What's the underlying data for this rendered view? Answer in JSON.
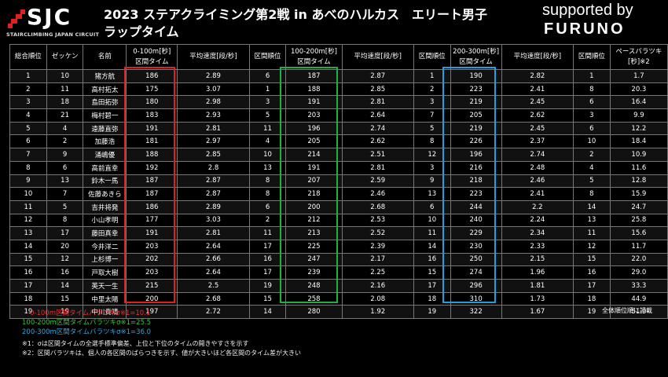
{
  "logo": {
    "text": "SJC",
    "sub": "STAIRCLIMBING JAPAN CIRCUIT"
  },
  "title": {
    "line1": "2023 ステアクライミング第2戦 in あべのハルカス　エリート男子",
    "line2": "ラップタイム"
  },
  "sponsor": {
    "supported": "supported by",
    "name": "FURUNO"
  },
  "headers": [
    "総合順位",
    "ゼッケン",
    "名前",
    "0-100m[秒]\n区間タイム",
    "平均速度[段/秒]",
    "区間順位",
    "100-200m[秒]\n区間タイム",
    "平均速度[段/秒]",
    "区間順位",
    "200-300m[秒]\n区間タイム",
    "平均速度[段/秒]",
    "区間順位",
    "ペースバラツキ\n[秒]※2"
  ],
  "rows": [
    [
      "1",
      "10",
      "猪方航",
      "186",
      "2.89",
      "6",
      "187",
      "2.87",
      "1",
      "190",
      "2.82",
      "1",
      "1.7"
    ],
    [
      "2",
      "11",
      "高村拓太",
      "175",
      "3.07",
      "1",
      "188",
      "2.85",
      "2",
      "223",
      "2.41",
      "8",
      "20.3"
    ],
    [
      "3",
      "18",
      "島田拓弥",
      "180",
      "2.98",
      "3",
      "191",
      "2.81",
      "3",
      "219",
      "2.45",
      "6",
      "16.4"
    ],
    [
      "4",
      "21",
      "梅村碧一",
      "183",
      "2.93",
      "5",
      "203",
      "2.64",
      "7",
      "205",
      "2.62",
      "3",
      "9.9"
    ],
    [
      "5",
      "4",
      "遠藤直弥",
      "191",
      "2.81",
      "11",
      "196",
      "2.74",
      "5",
      "219",
      "2.45",
      "6",
      "12.2"
    ],
    [
      "6",
      "2",
      "加藤浩",
      "181",
      "2.97",
      "4",
      "205",
      "2.62",
      "8",
      "226",
      "2.37",
      "10",
      "18.4"
    ],
    [
      "7",
      "9",
      "涌嶋優",
      "188",
      "2.85",
      "10",
      "214",
      "2.51",
      "12",
      "196",
      "2.74",
      "2",
      "10.9"
    ],
    [
      "8",
      "6",
      "高前直幸",
      "192",
      "2.8",
      "13",
      "191",
      "2.81",
      "3",
      "216",
      "2.48",
      "4",
      "11.6"
    ],
    [
      "9",
      "13",
      "鈴木一馬",
      "187",
      "2.87",
      "8",
      "207",
      "2.59",
      "9",
      "218",
      "2.46",
      "5",
      "12.8"
    ],
    [
      "10",
      "7",
      "佐藤あきら",
      "187",
      "2.87",
      "8",
      "218",
      "2.46",
      "13",
      "223",
      "2.41",
      "8",
      "15.9"
    ],
    [
      "11",
      "5",
      "吉井将発",
      "186",
      "2.89",
      "6",
      "200",
      "2.68",
      "6",
      "244",
      "2.2",
      "14",
      "24.7"
    ],
    [
      "12",
      "8",
      "小山孝明",
      "177",
      "3.03",
      "2",
      "212",
      "2.53",
      "10",
      "240",
      "2.24",
      "13",
      "25.8"
    ],
    [
      "13",
      "17",
      "藤田真幸",
      "191",
      "2.81",
      "11",
      "213",
      "2.52",
      "11",
      "229",
      "2.34",
      "11",
      "15.6"
    ],
    [
      "14",
      "20",
      "今井洋二",
      "203",
      "2.64",
      "17",
      "225",
      "2.39",
      "14",
      "230",
      "2.33",
      "12",
      "11.7"
    ],
    [
      "15",
      "12",
      "上杉博一",
      "202",
      "2.66",
      "16",
      "247",
      "2.17",
      "16",
      "250",
      "2.15",
      "15",
      "22.0"
    ],
    [
      "16",
      "16",
      "戸取大樹",
      "203",
      "2.64",
      "17",
      "239",
      "2.25",
      "15",
      "274",
      "1.96",
      "16",
      "29.0"
    ],
    [
      "17",
      "14",
      "英天一生",
      "215",
      "2.5",
      "19",
      "248",
      "2.16",
      "17",
      "296",
      "1.81",
      "17",
      "33.3"
    ],
    [
      "18",
      "15",
      "中里太陽",
      "200",
      "2.68",
      "15",
      "258",
      "2.08",
      "18",
      "310",
      "1.73",
      "18",
      "44.9"
    ],
    [
      "19",
      "19",
      "中川貴晴",
      "197",
      "2.72",
      "14",
      "280",
      "1.92",
      "19",
      "322",
      "1.67",
      "19",
      "51.9"
    ]
  ],
  "note_right": "全体順位順に記載",
  "legend": {
    "l1": "0-100m区間タイムバラツキσ※1=10.1",
    "l2": "100-200m区間タイムバラツキσ※1=25.5",
    "l3": "200-300m区間タイムバラツキσ※1=36.0"
  },
  "footnotes": {
    "f1": "※1：σは区間タイムの全選手標準偏差、上位と下位のタイムの開きやすさを示す",
    "f2": "※2：区間バラツキは、個人の各区間のばらつきを示す、値が大きいほど各区間のタイム差が大きい"
  },
  "colors": {
    "red": "#e02020",
    "green": "#20b040",
    "blue": "#20a0e0"
  }
}
